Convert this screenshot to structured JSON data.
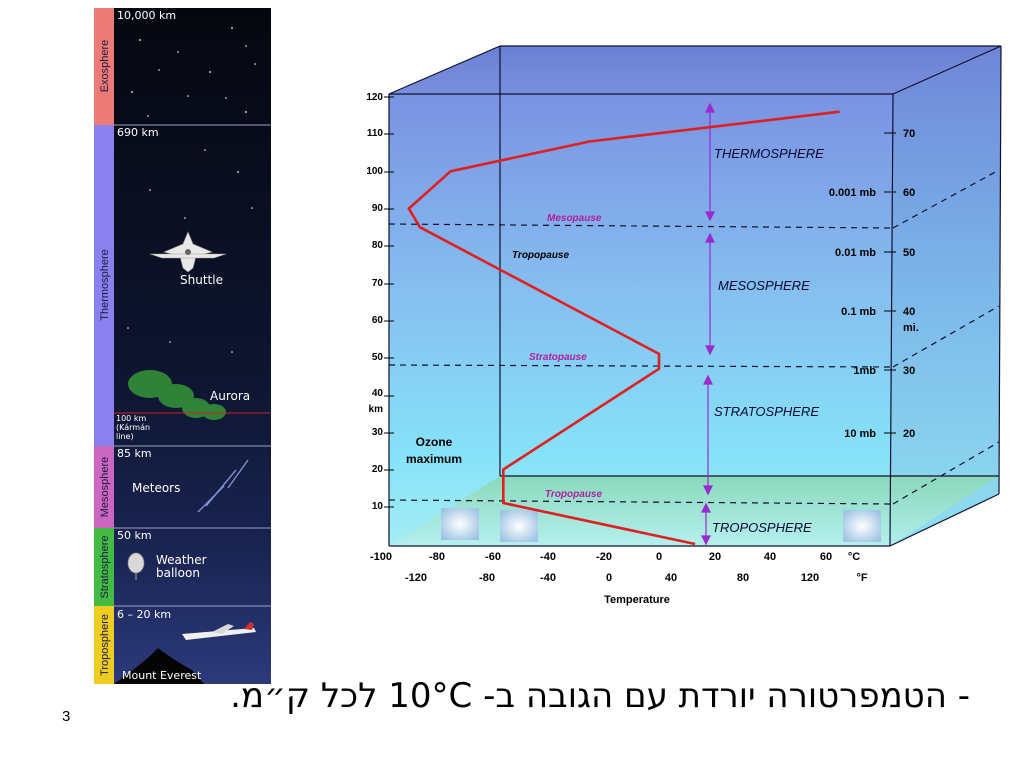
{
  "left_panel": {
    "layers": [
      {
        "name": "Exosphere",
        "color": "#ec7b78"
      },
      {
        "name": "Thermosphere",
        "color": "#8a80ee"
      },
      {
        "name": "Mesosphere",
        "color": "#cc66c0"
      },
      {
        "name": "Stratosphere",
        "color": "#44bb44"
      },
      {
        "name": "Troposphere",
        "color": "#eecc22"
      }
    ],
    "heights": [
      "10,000 km",
      "690 km",
      "85 km",
      "50 km",
      "6 – 20 km"
    ],
    "objects": {
      "shuttle": "Shuttle",
      "aurora": "Aurora",
      "karman": [
        "100 km",
        "(Kármán",
        "line)"
      ],
      "meteors": "Meteors",
      "balloon": [
        "Weather",
        "balloon"
      ],
      "everest": "Mount Everest"
    }
  },
  "profile": {
    "y_km_ticks": [
      "120",
      "110",
      "100",
      "90",
      "80",
      "70",
      "60",
      "50",
      "40",
      "30",
      "20",
      "10"
    ],
    "y_unit": "km",
    "x_c_ticks": [
      "-100",
      "-80",
      "-60",
      "-40",
      "-20",
      "0",
      "20",
      "40",
      "60"
    ],
    "x_c_unit": "°C",
    "x_f_ticks": [
      "-120",
      "-80",
      "-40",
      "0",
      "40",
      "80",
      "120"
    ],
    "x_f_unit": "°F",
    "x_label": "Temperature",
    "mi_ticks": [
      "70",
      "60",
      "50",
      "40",
      "30",
      "20"
    ],
    "mi_unit": "mi.",
    "pressure": [
      "0.001 mb",
      "0.01 mb",
      "0.1 mb",
      "1mb",
      "10 mb"
    ],
    "layers": [
      "THERMOSPHERE",
      "MESOSPHERE",
      "STRATOSPHERE",
      "TROPOSPHERE"
    ],
    "boundaries": [
      "Mesopause",
      "Tropopause",
      "Stratopause",
      "Tropopause"
    ],
    "ozone": [
      "Ozone",
      "maximum"
    ],
    "profile_points": [
      {
        "temp_c": 13,
        "alt_km": 0
      },
      {
        "temp_c": -56,
        "alt_km": 11
      },
      {
        "temp_c": -56,
        "alt_km": 20
      },
      {
        "temp_c": 0,
        "alt_km": 47
      },
      {
        "temp_c": 0,
        "alt_km": 51
      },
      {
        "temp_c": -86,
        "alt_km": 85
      },
      {
        "temp_c": -90,
        "alt_km": 90
      },
      {
        "temp_c": -75,
        "alt_km": 100
      },
      {
        "temp_c": -25,
        "alt_km": 108
      },
      {
        "temp_c": 65,
        "alt_km": 116
      }
    ],
    "line_color": "#e02020"
  },
  "slide": {
    "bullet": "- הטמפרטורה יורדת עם הגובה ב- 10°C לכל ק״מ.",
    "number": "3"
  }
}
